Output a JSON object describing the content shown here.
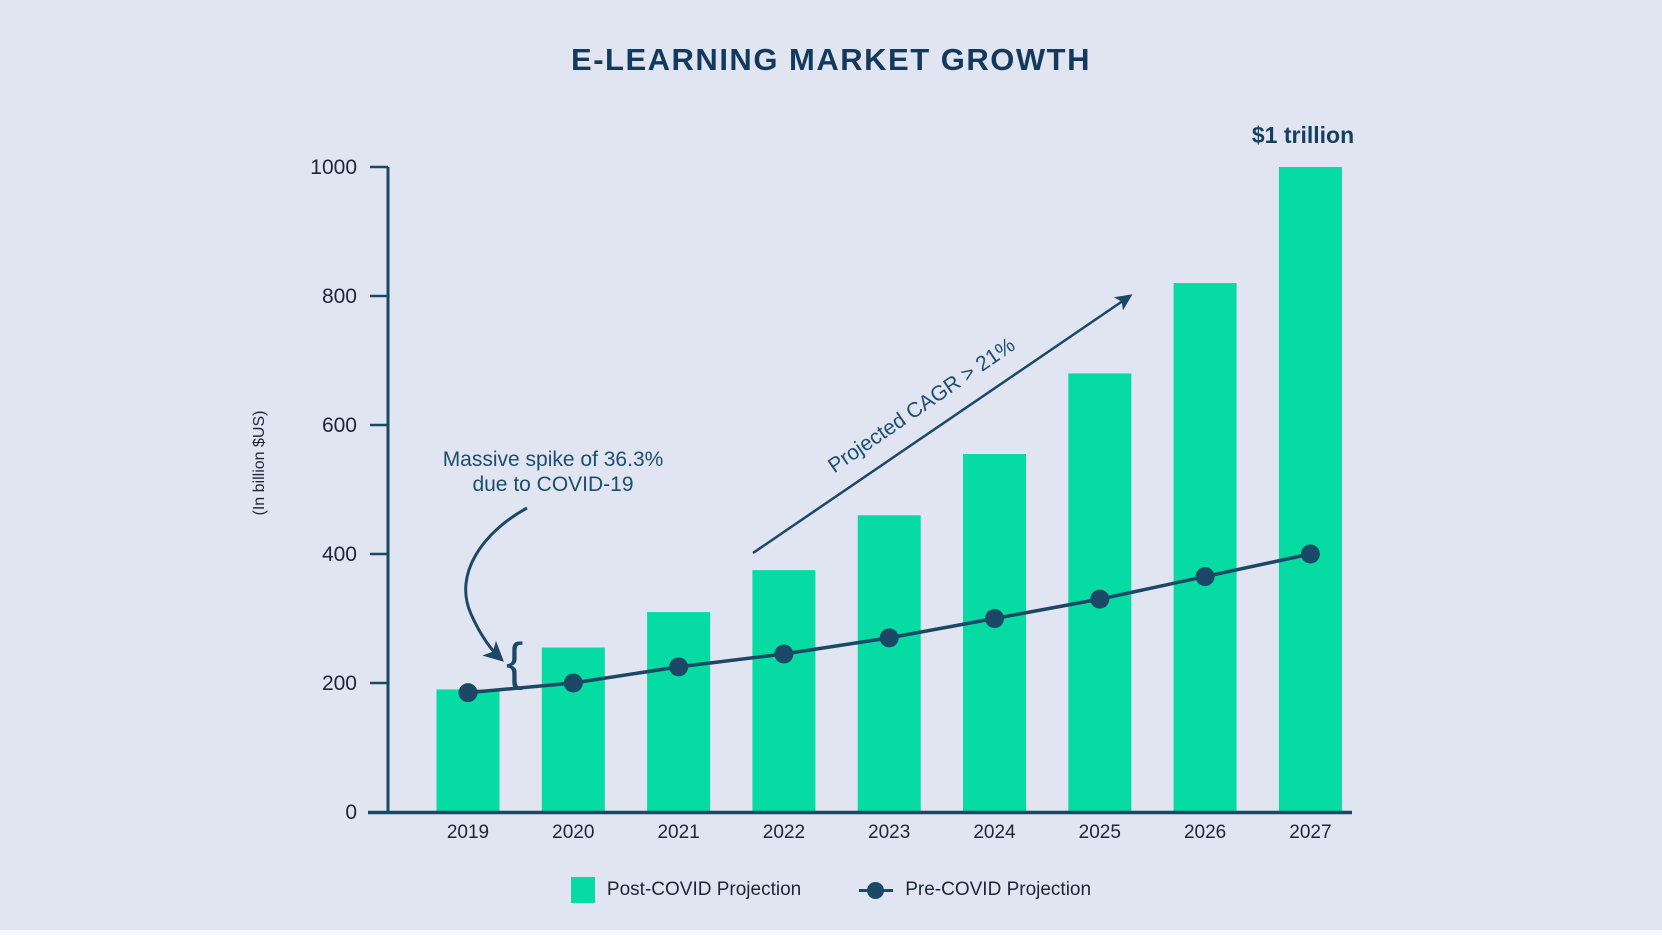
{
  "page": {
    "background": "#e0e5f1"
  },
  "colors": {
    "bar_green": "#05dba3",
    "navy_line": "#1b4866",
    "title_navy": "#133a5c",
    "annotation_navy": "#1d4e6d",
    "axis_text": "#1c2733"
  },
  "chart_data": {
    "type": "bar",
    "title": "E-LEARNING MARKET GROWTH",
    "categories": [
      "2019",
      "2020",
      "2021",
      "2022",
      "2023",
      "2024",
      "2025",
      "2026",
      "2027"
    ],
    "series": [
      {
        "name": "Post-COVID Projection",
        "type": "bar",
        "color": "#05dba3",
        "values": [
          190,
          255,
          310,
          375,
          460,
          555,
          680,
          820,
          1000
        ]
      },
      {
        "name": "Pre-COVID Projection",
        "type": "line",
        "color": "#1b4866",
        "values": [
          185,
          200,
          225,
          245,
          270,
          300,
          330,
          365,
          400
        ]
      }
    ],
    "xlabel": "",
    "ylabel": "(In billion $US)",
    "ylim": [
      0,
      1000
    ],
    "yticks": [
      0,
      200,
      400,
      600,
      800,
      1000
    ],
    "grid": false,
    "legend_position": "bottom",
    "annotations": {
      "spike": {
        "line1": "Massive spike of 36.3%",
        "line2": "due to COVID-19",
        "brace": "{"
      },
      "cagr": {
        "text": "Projected CAGR > 21%"
      },
      "final_value": {
        "text": "$1 trillion"
      }
    }
  }
}
